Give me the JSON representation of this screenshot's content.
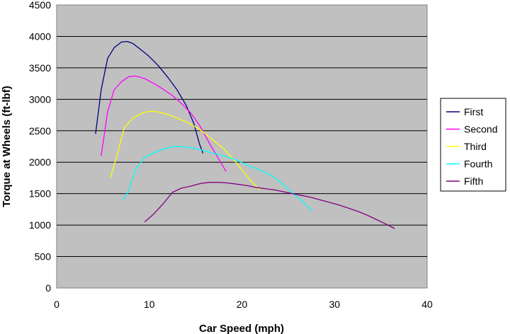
{
  "chart_data": {
    "type": "line",
    "title": "",
    "xlabel": "Car Speed (mph)",
    "ylabel": "Torque at Wheels (ft-lbf)",
    "xlim": [
      0,
      40
    ],
    "ylim": [
      0,
      4500
    ],
    "xticks": [
      "0",
      "10",
      "20",
      "30",
      "40"
    ],
    "yticks": [
      "0",
      "500",
      "1000",
      "1500",
      "2000",
      "2500",
      "3000",
      "3500",
      "4000",
      "4500"
    ],
    "grid": "horizontal",
    "plot_background": "#c0c0c0",
    "legend_position": "right",
    "series": [
      {
        "name": "First",
        "color": "#000080",
        "points": [
          [
            4.2,
            2450
          ],
          [
            4.8,
            3150
          ],
          [
            5.5,
            3650
          ],
          [
            6.2,
            3820
          ],
          [
            7.0,
            3910
          ],
          [
            7.6,
            3920
          ],
          [
            8.2,
            3890
          ],
          [
            9.0,
            3800
          ],
          [
            10.0,
            3680
          ],
          [
            11.0,
            3530
          ],
          [
            12.0,
            3350
          ],
          [
            13.0,
            3150
          ],
          [
            14.0,
            2900
          ],
          [
            14.8,
            2620
          ],
          [
            15.4,
            2300
          ],
          [
            15.8,
            2140
          ]
        ]
      },
      {
        "name": "Second",
        "color": "#ff00ff",
        "points": [
          [
            4.8,
            2100
          ],
          [
            5.5,
            2800
          ],
          [
            6.2,
            3150
          ],
          [
            7.0,
            3280
          ],
          [
            7.8,
            3360
          ],
          [
            8.5,
            3370
          ],
          [
            9.5,
            3330
          ],
          [
            10.5,
            3250
          ],
          [
            11.5,
            3160
          ],
          [
            12.5,
            3060
          ],
          [
            13.5,
            2930
          ],
          [
            14.5,
            2780
          ],
          [
            15.5,
            2570
          ],
          [
            16.5,
            2300
          ],
          [
            17.5,
            2050
          ],
          [
            18.3,
            1850
          ]
        ]
      },
      {
        "name": "Third",
        "color": "#ffff00",
        "points": [
          [
            5.8,
            1750
          ],
          [
            6.5,
            2100
          ],
          [
            7.3,
            2550
          ],
          [
            8.2,
            2700
          ],
          [
            9.2,
            2780
          ],
          [
            10.0,
            2810
          ],
          [
            11.0,
            2800
          ],
          [
            12.0,
            2760
          ],
          [
            13.0,
            2700
          ],
          [
            14.0,
            2640
          ],
          [
            15.0,
            2560
          ],
          [
            16.0,
            2460
          ],
          [
            17.0,
            2340
          ],
          [
            18.0,
            2220
          ],
          [
            19.0,
            2060
          ],
          [
            20.0,
            1880
          ],
          [
            21.0,
            1700
          ],
          [
            21.9,
            1560
          ]
        ]
      },
      {
        "name": "Fourth",
        "color": "#00ffff",
        "points": [
          [
            7.2,
            1400
          ],
          [
            7.8,
            1560
          ],
          [
            8.5,
            1880
          ],
          [
            9.5,
            2080
          ],
          [
            10.5,
            2150
          ],
          [
            11.5,
            2210
          ],
          [
            12.5,
            2245
          ],
          [
            13.5,
            2250
          ],
          [
            14.5,
            2230
          ],
          [
            15.5,
            2200
          ],
          [
            16.5,
            2160
          ],
          [
            17.5,
            2120
          ],
          [
            18.5,
            2080
          ],
          [
            19.5,
            2030
          ],
          [
            20.5,
            1960
          ],
          [
            21.5,
            1900
          ],
          [
            22.5,
            1840
          ],
          [
            23.5,
            1760
          ],
          [
            24.5,
            1640
          ],
          [
            25.5,
            1510
          ],
          [
            26.5,
            1380
          ],
          [
            27.6,
            1230
          ]
        ]
      },
      {
        "name": "Fifth",
        "color": "#800080",
        "points": [
          [
            9.5,
            1050
          ],
          [
            10.5,
            1180
          ],
          [
            11.5,
            1340
          ],
          [
            12.5,
            1520
          ],
          [
            13.5,
            1590
          ],
          [
            14.5,
            1620
          ],
          [
            15.5,
            1660
          ],
          [
            16.5,
            1680
          ],
          [
            17.5,
            1680
          ],
          [
            18.5,
            1670
          ],
          [
            19.5,
            1650
          ],
          [
            20.5,
            1630
          ],
          [
            21.5,
            1600
          ],
          [
            22.5,
            1580
          ],
          [
            23.5,
            1560
          ],
          [
            24.5,
            1530
          ],
          [
            25.5,
            1500
          ],
          [
            26.5,
            1470
          ],
          [
            27.5,
            1440
          ],
          [
            28.5,
            1400
          ],
          [
            29.5,
            1360
          ],
          [
            30.5,
            1320
          ],
          [
            31.5,
            1270
          ],
          [
            32.5,
            1220
          ],
          [
            33.5,
            1160
          ],
          [
            34.5,
            1090
          ],
          [
            35.5,
            1020
          ],
          [
            36.5,
            945
          ]
        ]
      }
    ]
  }
}
